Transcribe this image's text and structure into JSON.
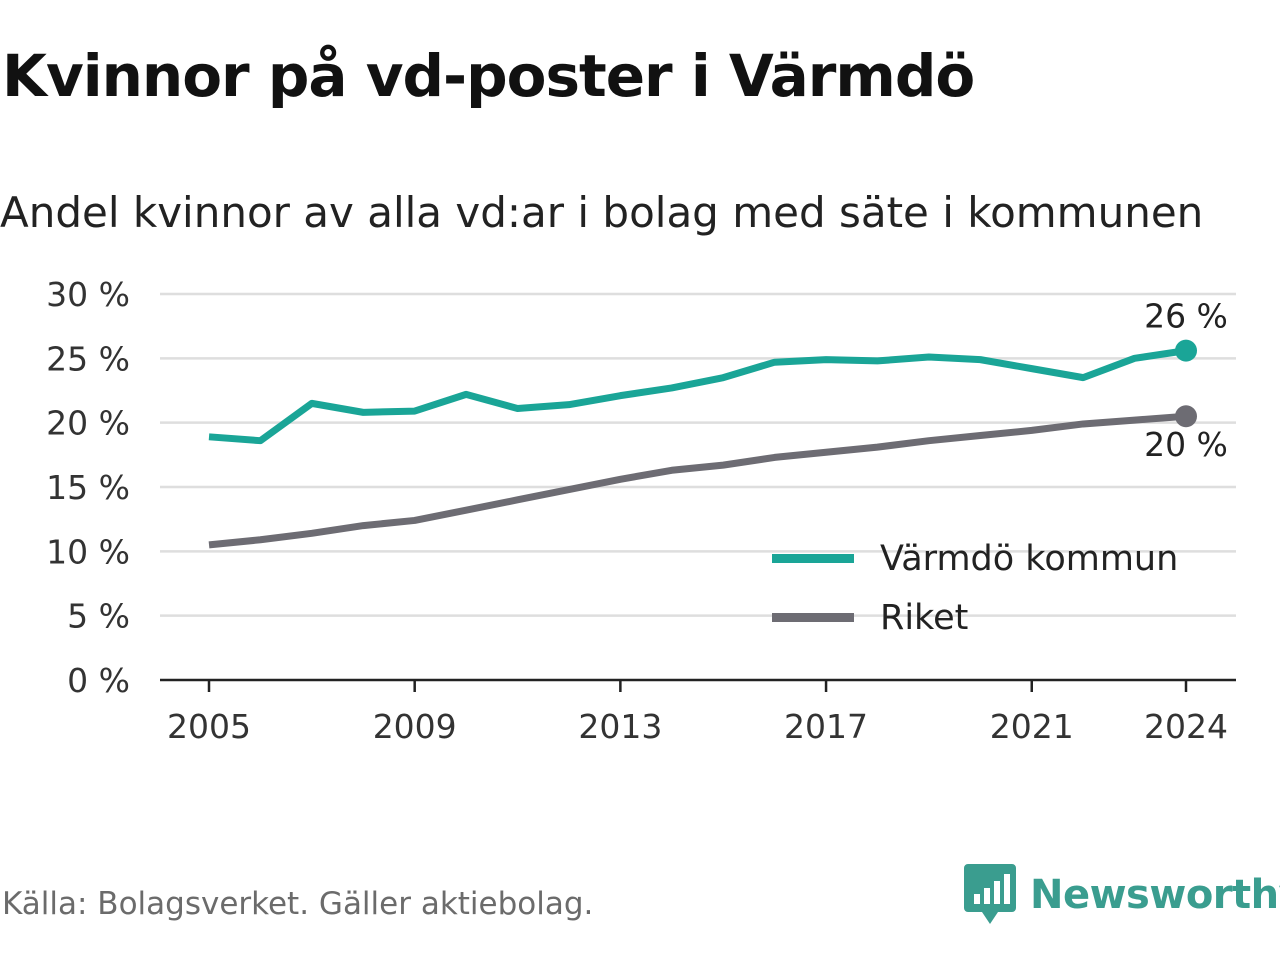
{
  "header": {
    "title": "Kvinnor på vd-poster i Värmdö",
    "subtitle": "Andel kvinnor av alla vd:ar i bolag med säte i kommunen"
  },
  "footer": {
    "source": "Källa: Bolagsverket. Gäller aktiebolag.",
    "brand": "Newsworthy"
  },
  "chart_data": {
    "type": "line",
    "x": [
      2005,
      2006,
      2007,
      2008,
      2009,
      2010,
      2011,
      2012,
      2013,
      2014,
      2015,
      2016,
      2017,
      2018,
      2019,
      2020,
      2021,
      2022,
      2023,
      2024
    ],
    "x_ticks": [
      "2005",
      "2009",
      "2013",
      "2017",
      "2021",
      "2024"
    ],
    "y_ticks": [
      "0 %",
      "5 %",
      "10 %",
      "15 %",
      "20 %",
      "25 %",
      "30 %"
    ],
    "ylim": [
      0,
      30
    ],
    "grid": true,
    "legend_position": "bottom-right",
    "series": [
      {
        "name": "Värmdö kommun",
        "color": "#1aa597",
        "values": [
          18.9,
          18.6,
          21.5,
          20.8,
          20.9,
          22.2,
          21.1,
          21.4,
          22.1,
          22.7,
          23.5,
          24.7,
          24.9,
          24.8,
          25.1,
          24.9,
          24.2,
          23.5,
          25.0,
          25.6
        ],
        "end_label": "26 %"
      },
      {
        "name": "Riket",
        "color": "#6d6c73",
        "values": [
          10.5,
          10.9,
          11.4,
          12.0,
          12.4,
          13.2,
          14.0,
          14.8,
          15.6,
          16.3,
          16.7,
          17.3,
          17.7,
          18.1,
          18.6,
          19.0,
          19.4,
          19.9,
          20.2,
          20.5
        ],
        "end_label": "20 %"
      }
    ]
  }
}
